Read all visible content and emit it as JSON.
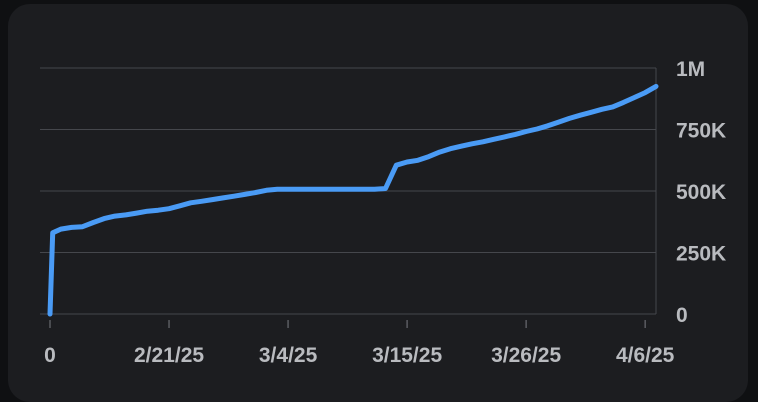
{
  "chart_data": {
    "type": "line",
    "title": "",
    "xlabel": "",
    "ylabel": "",
    "x_tick_labels": [
      "0",
      "2/21/25",
      "3/4/25",
      "3/15/25",
      "3/26/25",
      "4/6/25"
    ],
    "y_ticks": [
      {
        "value": 0,
        "label": "0"
      },
      {
        "value": 250000,
        "label": "250K"
      },
      {
        "value": 500000,
        "label": "500K"
      },
      {
        "value": 750000,
        "label": "750K"
      },
      {
        "value": 1000000,
        "label": "1M"
      }
    ],
    "ylim": [
      0,
      1000000
    ],
    "grid": true,
    "color": "#4a9bf5",
    "series": [
      {
        "x": [
          "2/10/25",
          "2/10/25",
          "2/11/25",
          "2/12/25",
          "2/13/25",
          "2/14/25",
          "2/15/25",
          "2/16/25",
          "2/17/25",
          "2/18/25",
          "2/19/25",
          "2/20/25",
          "2/21/25",
          "2/22/25",
          "2/23/25",
          "2/24/25",
          "2/25/25",
          "2/26/25",
          "2/27/25",
          "2/28/25",
          "3/1/25",
          "3/2/25",
          "3/3/25",
          "3/4/25",
          "3/5/25",
          "3/6/25",
          "3/7/25",
          "3/8/25",
          "3/9/25",
          "3/10/25",
          "3/11/25",
          "3/12/25",
          "3/13/25",
          "3/14/25",
          "3/15/25",
          "3/16/25",
          "3/17/25",
          "3/18/25",
          "3/19/25",
          "3/20/25",
          "3/21/25",
          "3/22/25",
          "3/23/25",
          "3/24/25",
          "3/25/25",
          "3/26/25",
          "3/27/25",
          "3/28/25",
          "3/29/25",
          "3/30/25",
          "3/31/25",
          "4/1/25",
          "4/2/25",
          "4/3/25",
          "4/4/25",
          "4/5/25",
          "4/6/25",
          "4/7/25"
        ],
        "values": [
          0,
          330000,
          345000,
          352000,
          355000,
          372000,
          388000,
          398000,
          403000,
          410000,
          418000,
          422000,
          428000,
          440000,
          452000,
          458000,
          465000,
          472000,
          479000,
          486000,
          494000,
          503000,
          507000,
          507000,
          507000,
          507000,
          507000,
          507000,
          507000,
          507000,
          507000,
          507000,
          510000,
          605000,
          618000,
          625000,
          640000,
          658000,
          672000,
          682000,
          692000,
          700000,
          710000,
          720000,
          730000,
          742000,
          752000,
          765000,
          780000,
          795000,
          808000,
          820000,
          832000,
          842000,
          860000,
          880000,
          900000,
          925000
        ]
      }
    ]
  }
}
